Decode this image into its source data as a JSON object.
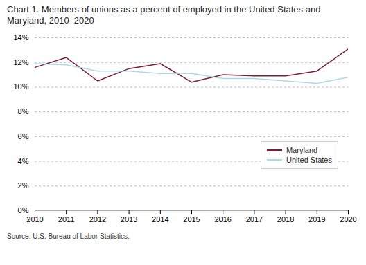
{
  "chart_data": {
    "type": "line",
    "title": "Chart 1. Members of unions as a percent of employed in the United States and\nMaryland, 2010–2020",
    "source": "Source: U.S. Bureau of Labor Statistics.",
    "x": [
      2010,
      2011,
      2012,
      2013,
      2014,
      2015,
      2016,
      2017,
      2018,
      2019,
      2020
    ],
    "series": [
      {
        "name": "Maryland",
        "color": "#7B1C3C",
        "values": [
          11.6,
          12.4,
          10.5,
          11.5,
          11.9,
          10.4,
          11.0,
          10.9,
          10.9,
          11.3,
          13.1
        ]
      },
      {
        "name": "United States",
        "color": "#ADD8E6",
        "values": [
          11.9,
          11.8,
          11.3,
          11.3,
          11.1,
          11.1,
          10.7,
          10.7,
          10.5,
          10.3,
          10.8
        ]
      }
    ],
    "xlim": [
      2010,
      2020
    ],
    "xticks": [
      2010,
      2011,
      2012,
      2013,
      2014,
      2015,
      2016,
      2017,
      2018,
      2019,
      2020
    ],
    "ylim": [
      0,
      14
    ],
    "yticks": [
      {
        "value": 0,
        "label": "0%"
      },
      {
        "value": 2,
        "label": "2%"
      },
      {
        "value": 4,
        "label": "4%"
      },
      {
        "value": 6,
        "label": "6%"
      },
      {
        "value": 8,
        "label": "8%"
      },
      {
        "value": 10,
        "label": "10%"
      },
      {
        "value": 12,
        "label": "12%"
      },
      {
        "value": 14,
        "label": "14%"
      }
    ],
    "grid": true,
    "legend": "lower right"
  }
}
